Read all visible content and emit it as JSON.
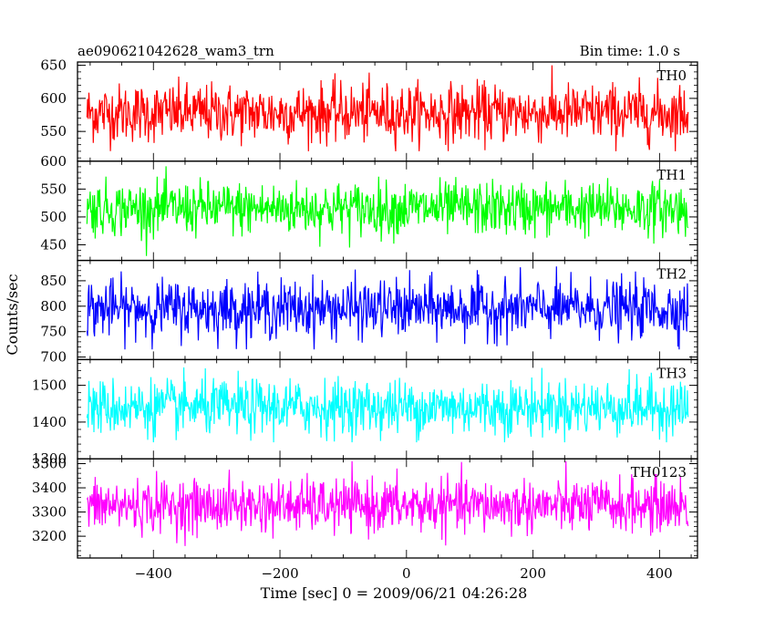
{
  "header": {
    "title": "ae090621042628_wam3_trn",
    "bin_time": "Bin time: 1.0 s"
  },
  "chart_data": {
    "type": "line",
    "xlabel": "Time [sec] 0 = 2009/06/21 04:26:28",
    "ylabel": "Counts/sec",
    "xlim": [
      -520,
      460
    ],
    "x_range": [
      -505,
      445
    ],
    "x_ticks": [
      -400,
      -200,
      0,
      200,
      400
    ],
    "grid": false,
    "panels": [
      {
        "name": "TH0",
        "color": "#ff0000",
        "ylim": [
          505,
          655
        ],
        "yticks": [
          550,
          600,
          650
        ],
        "mean": 578,
        "noise_sd": 22,
        "min": 520,
        "max": 655
      },
      {
        "name": "TH1",
        "color": "#00ff00",
        "ylim": [
          422,
          600
        ],
        "yticks": [
          450,
          500,
          550,
          600
        ],
        "mean": 515,
        "noise_sd": 24,
        "min": 430,
        "max": 600
      },
      {
        "name": "TH2",
        "color": "#0000ff",
        "ylim": [
          695,
          890
        ],
        "yticks": [
          700,
          750,
          800,
          850
        ],
        "mean": 795,
        "noise_sd": 28,
        "min": 715,
        "max": 885
      },
      {
        "name": "TH3",
        "color": "#00ffff",
        "ylim": [
          1300,
          1570
        ],
        "yticks": [
          1300,
          1400,
          1500
        ],
        "mean": 1440,
        "noise_sd": 38,
        "min": 1345,
        "max": 1565
      },
      {
        "name": "TH0123",
        "color": "#ff00ff",
        "ylim": [
          3110,
          3520
        ],
        "yticks": [
          3200,
          3300,
          3400,
          3500
        ],
        "mean": 3325,
        "noise_sd": 55,
        "min": 3120,
        "max": 3510
      }
    ]
  }
}
